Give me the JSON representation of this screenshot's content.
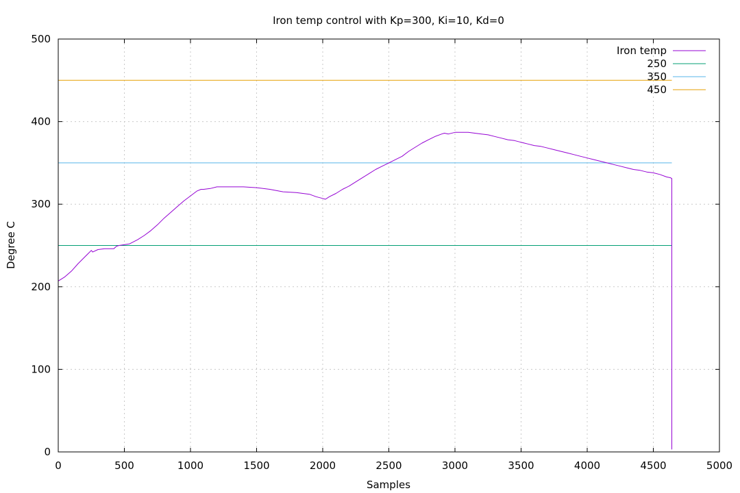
{
  "chart_data": {
    "type": "line",
    "title": "Iron temp control with Kp=300, Ki=10, Kd=0",
    "xlabel": "Samples",
    "ylabel": "Degree C",
    "xlim": [
      0,
      5000
    ],
    "ylim": [
      0,
      500
    ],
    "x_ticks": [
      0,
      500,
      1000,
      1500,
      2000,
      2500,
      3000,
      3500,
      4000,
      4500,
      5000
    ],
    "y_ticks": [
      0,
      100,
      200,
      300,
      400,
      500
    ],
    "grid": true,
    "legend": "top-right",
    "series": [
      {
        "name": "Iron temp",
        "color": "#9400d3",
        "x": [
          0,
          50,
          100,
          150,
          200,
          250,
          260,
          300,
          350,
          400,
          420,
          440,
          460,
          540,
          600,
          650,
          700,
          750,
          800,
          850,
          900,
          950,
          1000,
          1050,
          1080,
          1100,
          1150,
          1200,
          1300,
          1400,
          1500,
          1600,
          1700,
          1800,
          1900,
          1950,
          2000,
          2020,
          2050,
          2100,
          2150,
          2200,
          2250,
          2300,
          2350,
          2400,
          2450,
          2500,
          2550,
          2600,
          2650,
          2700,
          2750,
          2800,
          2850,
          2900,
          2920,
          2950,
          3000,
          3050,
          3100,
          3150,
          3200,
          3250,
          3300,
          3350,
          3400,
          3450,
          3500,
          3550,
          3600,
          3650,
          3700,
          3750,
          3800,
          3850,
          3900,
          3950,
          4000,
          4050,
          4100,
          4150,
          4200,
          4250,
          4300,
          4350,
          4400,
          4450,
          4500,
          4550,
          4600,
          4630,
          4640,
          4640
        ],
        "y": [
          207,
          212,
          219,
          228,
          236,
          244,
          242,
          245,
          246,
          246,
          246,
          249,
          250,
          252,
          257,
          262,
          268,
          275,
          283,
          290,
          297,
          304,
          310,
          316,
          318,
          318,
          319,
          321,
          321,
          321,
          320,
          318,
          315,
          314,
          312,
          309,
          307,
          306,
          309,
          313,
          318,
          322,
          327,
          332,
          337,
          342,
          346,
          350,
          354,
          358,
          364,
          369,
          374,
          378,
          382,
          385,
          386,
          385,
          387,
          387,
          387,
          386,
          385,
          384,
          382,
          380,
          378,
          377,
          375,
          373,
          371,
          370,
          368,
          366,
          364,
          362,
          360,
          358,
          356,
          354,
          352,
          350,
          348,
          346,
          344,
          342,
          341,
          339,
          338,
          336,
          333,
          332,
          331,
          3
        ]
      },
      {
        "name": "250",
        "color": "#009e73",
        "x": [
          0,
          4640
        ],
        "y": [
          250,
          250
        ]
      },
      {
        "name": "350",
        "color": "#56b4e9",
        "x": [
          0,
          4640
        ],
        "y": [
          350,
          350
        ]
      },
      {
        "name": "450",
        "color": "#e69f00",
        "x": [
          0,
          4640
        ],
        "y": [
          450,
          450
        ]
      }
    ]
  }
}
